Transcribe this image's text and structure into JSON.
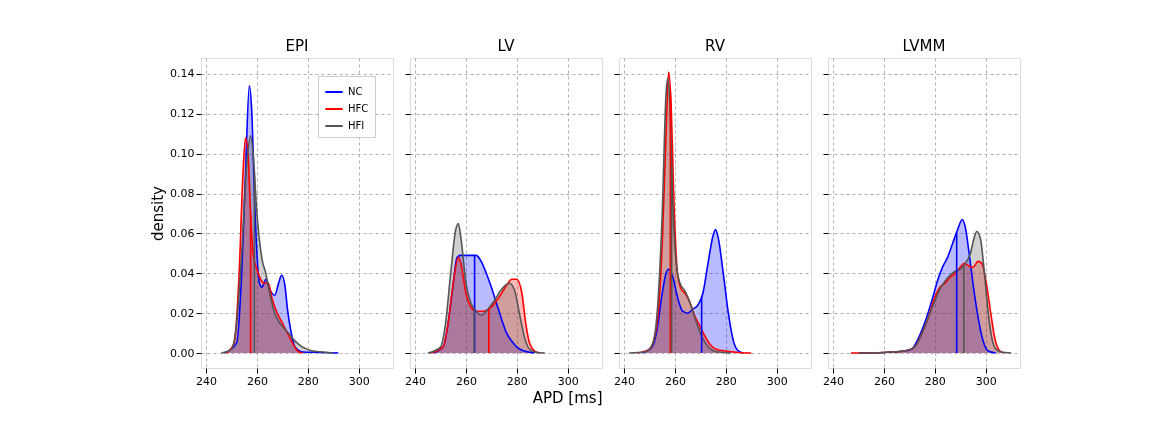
{
  "chart_data": [
    {
      "type": "area",
      "title": "EPI",
      "ylabel": "density",
      "xlim": [
        238,
        313.5
      ],
      "xticks": [
        240,
        260,
        280,
        300
      ],
      "ylim": [
        -0.0075,
        0.148
      ],
      "yticks": [
        {
          "value": 0,
          "label": "0.00"
        },
        {
          "value": 0.02,
          "label": "0.02"
        },
        {
          "value": 0.04,
          "label": "0.04"
        },
        {
          "value": 0.06,
          "label": "0.06"
        },
        {
          "value": 0.08,
          "label": "0.08"
        },
        {
          "value": 0.1,
          "label": "0.10"
        },
        {
          "value": 0.12,
          "label": "0.12"
        },
        {
          "value": 0.14,
          "label": "0.14"
        }
      ],
      "grid": true,
      "legend": "top right",
      "series": [
        {
          "name": "NC",
          "color": "#0000ff",
          "x": [
            247,
            252,
            254,
            255.5,
            257,
            258,
            259,
            260,
            261,
            262,
            263.5,
            265,
            267,
            268.5,
            269.7,
            271,
            272,
            273.5,
            275,
            278,
            285,
            292
          ],
          "values": [
            0,
            0.005,
            0.04,
            0.09,
            0.134,
            0.12,
            0.08,
            0.05,
            0.035,
            0.033,
            0.037,
            0.032,
            0.029,
            0.035,
            0.039,
            0.034,
            0.022,
            0.01,
            0.003,
            0.0005,
            0.0003,
            0
          ]
        },
        {
          "name": "HFC",
          "color": "#ff0000",
          "x": [
            248,
            251,
            253,
            254.5,
            255.5,
            256.5,
            257.5,
            258.5,
            260,
            261.5,
            263,
            264.5,
            266,
            268,
            270,
            272,
            274,
            276,
            278
          ],
          "values": [
            0,
            0.005,
            0.04,
            0.09,
            0.108,
            0.1,
            0.07,
            0.05,
            0.042,
            0.037,
            0.035,
            0.035,
            0.027,
            0.02,
            0.015,
            0.01,
            0.005,
            0.001,
            0
          ]
        },
        {
          "name": "HFI",
          "color": "#555555",
          "x": [
            246,
            250,
            252,
            254,
            256,
            257.5,
            258.5,
            260,
            262,
            263.5,
            265,
            267,
            269,
            271,
            273,
            275,
            278,
            282,
            288,
            290
          ],
          "values": [
            0,
            0.002,
            0.015,
            0.05,
            0.095,
            0.109,
            0.1,
            0.07,
            0.047,
            0.04,
            0.03,
            0.02,
            0.015,
            0.012,
            0.009,
            0.006,
            0.003,
            0.001,
            0.0003,
            0
          ]
        }
      ],
      "ref_lines": [
        {
          "axis": "x",
          "value": 257.5,
          "color": "#ff0000"
        },
        {
          "axis": "x",
          "value": 259,
          "color": "#555555"
        }
      ]
    },
    {
      "type": "area",
      "title": "LV",
      "xlabel": "APD [ms]",
      "xlim": [
        238,
        313.5
      ],
      "xticks": [
        240,
        260,
        280,
        300
      ],
      "ylim": [
        -0.0075,
        0.148
      ],
      "yticks": [
        0,
        0.02,
        0.04,
        0.06,
        0.08,
        0.1,
        0.12,
        0.14
      ],
      "grid": true,
      "tick_labels": "x",
      "series": [
        {
          "color": "#0000ff",
          "x": [
            247,
            251,
            253,
            255,
            256.5,
            258,
            261,
            264,
            266,
            268,
            270,
            272,
            274,
            276,
            278,
            280,
            283,
            287
          ],
          "values": [
            0,
            0.003,
            0.015,
            0.035,
            0.048,
            0.049,
            0.049,
            0.049,
            0.046,
            0.04,
            0.033,
            0.025,
            0.017,
            0.01,
            0.006,
            0.003,
            0.001,
            0
          ]
        },
        {
          "color": "#ff0000",
          "x": [
            246,
            251,
            253,
            255,
            257,
            258,
            260,
            262,
            264,
            267,
            270,
            273,
            276,
            278,
            280,
            282,
            283.5,
            285,
            287,
            289
          ],
          "values": [
            0,
            0.003,
            0.015,
            0.035,
            0.048,
            0.045,
            0.03,
            0.023,
            0.021,
            0.021,
            0.023,
            0.028,
            0.034,
            0.037,
            0.037,
            0.03,
            0.015,
            0.005,
            0.001,
            0
          ]
        },
        {
          "color": "#555555",
          "x": [
            245,
            250,
            252,
            254,
            256,
            257,
            258,
            260,
            262,
            264,
            266,
            268,
            271,
            274,
            277,
            279,
            281,
            283,
            285,
            288,
            291
          ],
          "values": [
            0,
            0.003,
            0.015,
            0.04,
            0.062,
            0.065,
            0.058,
            0.035,
            0.025,
            0.021,
            0.019,
            0.021,
            0.026,
            0.032,
            0.035,
            0.032,
            0.02,
            0.008,
            0.002,
            0.0003,
            0
          ]
        }
      ],
      "ref_lines": [
        {
          "axis": "x",
          "value": 263.4,
          "color": "#0000ff"
        },
        {
          "axis": "x",
          "value": 269,
          "color": "#ff0000"
        },
        {
          "axis": "x",
          "value": 263.2,
          "color": "#555555"
        }
      ]
    },
    {
      "type": "area",
      "title": "RV",
      "xlim": [
        238,
        313.5
      ],
      "xticks": [
        240,
        260,
        280,
        300
      ],
      "ylim": [
        -0.0075,
        0.148
      ],
      "yticks": [
        0,
        0.02,
        0.04,
        0.06,
        0.08,
        0.1,
        0.12,
        0.14
      ],
      "grid": true,
      "tick_labels": "x",
      "series": [
        {
          "color": "#0000ff",
          "x": [
            247,
            251,
            253,
            255,
            256.5,
            257.5,
            259,
            261,
            263,
            265,
            267,
            269,
            271,
            273,
            275,
            276,
            277,
            279,
            281,
            283,
            285,
            287
          ],
          "values": [
            0,
            0.003,
            0.012,
            0.03,
            0.04,
            0.042,
            0.039,
            0.028,
            0.021,
            0.02,
            0.022,
            0.024,
            0.03,
            0.045,
            0.059,
            0.062,
            0.058,
            0.04,
            0.02,
            0.006,
            0.001,
            0
          ]
        },
        {
          "color": "#ff0000",
          "x": [
            245,
            250,
            253,
            255,
            256.5,
            257.5,
            258.5,
            259.5,
            261,
            262.5,
            264,
            266,
            268,
            270,
            272,
            274,
            276,
            280,
            285,
            290
          ],
          "values": [
            0,
            0.002,
            0.015,
            0.055,
            0.11,
            0.141,
            0.125,
            0.08,
            0.04,
            0.032,
            0.03,
            0.025,
            0.018,
            0.013,
            0.008,
            0.004,
            0.002,
            0.001,
            0.0003,
            0
          ]
        },
        {
          "color": "#555555",
          "x": [
            242,
            248,
            251,
            253,
            255,
            256.5,
            257.2,
            258,
            259,
            260.5,
            262,
            264,
            266,
            268,
            270,
            272,
            274,
            277,
            282
          ],
          "values": [
            0,
            0.0005,
            0.004,
            0.02,
            0.07,
            0.13,
            0.138,
            0.125,
            0.08,
            0.045,
            0.035,
            0.031,
            0.025,
            0.017,
            0.01,
            0.005,
            0.002,
            0.0005,
            0
          ]
        }
      ],
      "ref_lines": [
        {
          "axis": "x",
          "value": 270.5,
          "color": "#0000ff"
        },
        {
          "axis": "x",
          "value": 258.2,
          "color": "#ff0000"
        },
        {
          "axis": "x",
          "value": 258.7,
          "color": "#555555"
        }
      ]
    },
    {
      "type": "area",
      "title": "LVMM",
      "xlim": [
        238,
        313.5
      ],
      "xticks": [
        240,
        260,
        280,
        300
      ],
      "ylim": [
        -0.0075,
        0.148
      ],
      "yticks": [
        0,
        0.02,
        0.04,
        0.06,
        0.08,
        0.1,
        0.12,
        0.14
      ],
      "grid": true,
      "tick_labels": "x",
      "series": [
        {
          "color": "#0000ff",
          "x": [
            250,
            260,
            268,
            271,
            273,
            276,
            279,
            281,
            283,
            285,
            287,
            289,
            290.8,
            292,
            293.5,
            295,
            297,
            299,
            301,
            304
          ],
          "values": [
            0,
            0.0003,
            0.001,
            0.002,
            0.006,
            0.015,
            0.027,
            0.036,
            0.043,
            0.048,
            0.055,
            0.062,
            0.067,
            0.063,
            0.05,
            0.035,
            0.018,
            0.006,
            0.001,
            0
          ]
        },
        {
          "color": "#ff0000",
          "x": [
            247,
            260,
            268,
            272,
            275,
            278,
            280,
            282,
            284,
            286,
            288,
            290,
            291.5,
            293,
            295,
            297,
            298.5,
            300,
            302,
            303.5,
            305,
            307
          ],
          "values": [
            0,
            0.0003,
            0.001,
            0.003,
            0.01,
            0.02,
            0.028,
            0.033,
            0.035,
            0.038,
            0.04,
            0.043,
            0.045,
            0.044,
            0.043,
            0.046,
            0.045,
            0.037,
            0.02,
            0.008,
            0.002,
            0
          ]
        },
        {
          "color": "#555555",
          "x": [
            250,
            260,
            268,
            272,
            275,
            278,
            280,
            282,
            284,
            286,
            288,
            290,
            292,
            294,
            295.5,
            296.5,
            298,
            299.5,
            301,
            302.5,
            304,
            306,
            310
          ],
          "values": [
            0,
            0.0003,
            0.001,
            0.003,
            0.01,
            0.02,
            0.026,
            0.032,
            0.036,
            0.039,
            0.041,
            0.042,
            0.045,
            0.05,
            0.058,
            0.061,
            0.057,
            0.04,
            0.02,
            0.007,
            0.002,
            0.0005,
            0
          ]
        }
      ],
      "ref_lines": [
        {
          "axis": "x",
          "value": 288.6,
          "color": "#0000ff"
        },
        {
          "axis": "x",
          "value": 291.4,
          "color": "#555555"
        }
      ]
    }
  ]
}
